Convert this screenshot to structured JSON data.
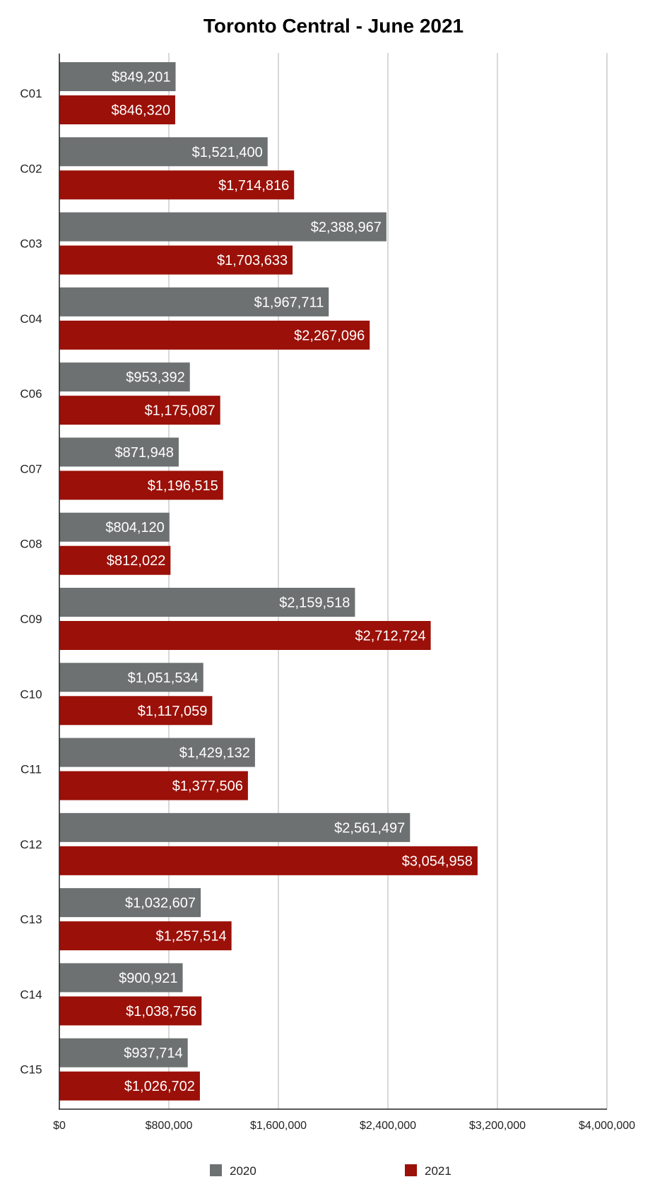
{
  "chart_data": {
    "type": "bar",
    "orientation": "horizontal",
    "title": "Toronto Central - June 2021",
    "xlabel": "",
    "ylabel": "",
    "categories": [
      "C01",
      "C02",
      "C03",
      "C04",
      "C06",
      "C07",
      "C08",
      "C09",
      "C10",
      "C11",
      "C12",
      "C13",
      "C14",
      "C15"
    ],
    "series": [
      {
        "name": "2020",
        "color": "#6d7171",
        "values": [
          849201,
          1521400,
          2388967,
          1967711,
          953392,
          871948,
          804120,
          2159518,
          1051534,
          1429132,
          2561497,
          1032607,
          900921,
          937714
        ],
        "labels": [
          "$849,201",
          "$1,521,400",
          "$2,388,967",
          "$1,967,711",
          "$953,392",
          "$871,948",
          "$804,120",
          "$2,159,518",
          "$1,051,534",
          "$1,429,132",
          "$2,561,497",
          "$1,032,607",
          "$900,921",
          "$937,714"
        ]
      },
      {
        "name": "2021",
        "color": "#9b1008",
        "values": [
          846320,
          1714816,
          1703633,
          2267096,
          1175087,
          1196515,
          812022,
          2712724,
          1117059,
          1377506,
          3054958,
          1257514,
          1038756,
          1026702
        ],
        "labels": [
          "$846,320",
          "$1,714,816",
          "$1,703,633",
          "$2,267,096",
          "$1,175,087",
          "$1,196,515",
          "$812,022",
          "$2,712,724",
          "$1,117,059",
          "$1,377,506",
          "$3,054,958",
          "$1,257,514",
          "$1,038,756",
          "$1,026,702"
        ]
      }
    ],
    "x_ticks": [
      0,
      800000,
      1600000,
      2400000,
      3200000,
      4000000
    ],
    "x_tick_labels": [
      "$0",
      "$800,000",
      "$1,600,000",
      "$2,400,000",
      "$3,200,000",
      "$4,000,000"
    ],
    "xlim": [
      0,
      4000000
    ],
    "grid": true,
    "legend_position": "bottom"
  }
}
